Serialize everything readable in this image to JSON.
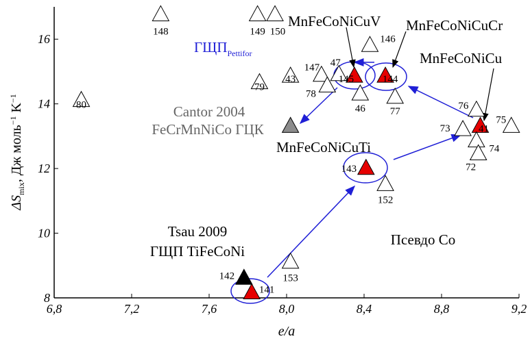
{
  "chart_data": {
    "type": "scatter",
    "x_label": "e/a",
    "y_label": {
      "main": "ΔS",
      "sub": "mix",
      "unit1": ", Дж моль",
      "sup1": "−1",
      "unit2": " K",
      "sup2": "−1"
    },
    "xlim": [
      6.8,
      9.2
    ],
    "xticks": [
      {
        "value": 6.8,
        "label": "6,8"
      },
      {
        "value": 7.2,
        "label": "7,2"
      },
      {
        "value": 7.6,
        "label": "7,6"
      },
      {
        "value": 8.0,
        "label": "8,0"
      },
      {
        "value": 8.4,
        "label": "8,4"
      },
      {
        "value": 8.8,
        "label": "8,8"
      },
      {
        "value": 9.2,
        "label": "9,2"
      }
    ],
    "ylim": [
      8,
      17
    ],
    "yticks": [
      8,
      10,
      12,
      14,
      16
    ],
    "points": {
      "labels": [
        "148",
        "149",
        "150",
        "146",
        "147",
        "47",
        "145",
        "144",
        "43",
        "79",
        "78",
        "46",
        "77",
        "80",
        "76",
        "75",
        "73",
        "41",
        "74",
        "72",
        null,
        "143",
        "152",
        "153",
        "142",
        "141"
      ],
      "x": [
        7.35,
        7.85,
        7.94,
        8.43,
        8.18,
        8.27,
        8.35,
        8.51,
        8.02,
        7.86,
        8.21,
        8.38,
        8.56,
        6.94,
        8.98,
        9.16,
        8.91,
        9.0,
        8.98,
        8.99,
        8.02,
        8.41,
        8.51,
        8.02,
        7.78,
        7.82
      ],
      "y": [
        16.8,
        16.8,
        16.8,
        15.85,
        14.93,
        14.95,
        14.9,
        14.9,
        14.9,
        14.7,
        14.6,
        14.35,
        14.25,
        14.15,
        13.85,
        13.35,
        13.25,
        13.35,
        12.9,
        12.5,
        13.35,
        12.05,
        11.55,
        9.15,
        8.65,
        8.2
      ],
      "colors": [
        "#ffffff",
        "#ffffff",
        "#ffffff",
        "#ffffff",
        "#ffffff",
        "#ffffff",
        "#e60000",
        "#e60000",
        "#ffffff",
        "#ffffff",
        "#ffffff",
        "#ffffff",
        "#ffffff",
        "#ffffff",
        "#ffffff",
        "#ffffff",
        "#ffffff",
        "#e60000",
        "#ffffff",
        "#ffffff",
        "#8c8c8c",
        "#e60000",
        "#ffffff",
        "#ffffff",
        "#000000",
        "#e60000"
      ]
    },
    "annotations": {
      "cuv": "MnFeCoNiCuV",
      "cucr": "MnFeCoNiCuCr",
      "cu": "MnFeCoNiCu",
      "cuti": "MnFeCoNiCuTi",
      "hcp": "ГЩП",
      "hcp_sub": "Pettifor",
      "cantor1": "Cantor 2004",
      "cantor2": "FeCrMnNiCo ГЦК",
      "tsau1": "Tsau 2009",
      "tsau2": "ГЩП TiFeCoNi",
      "pseudo": "Псевдо Co"
    }
  }
}
